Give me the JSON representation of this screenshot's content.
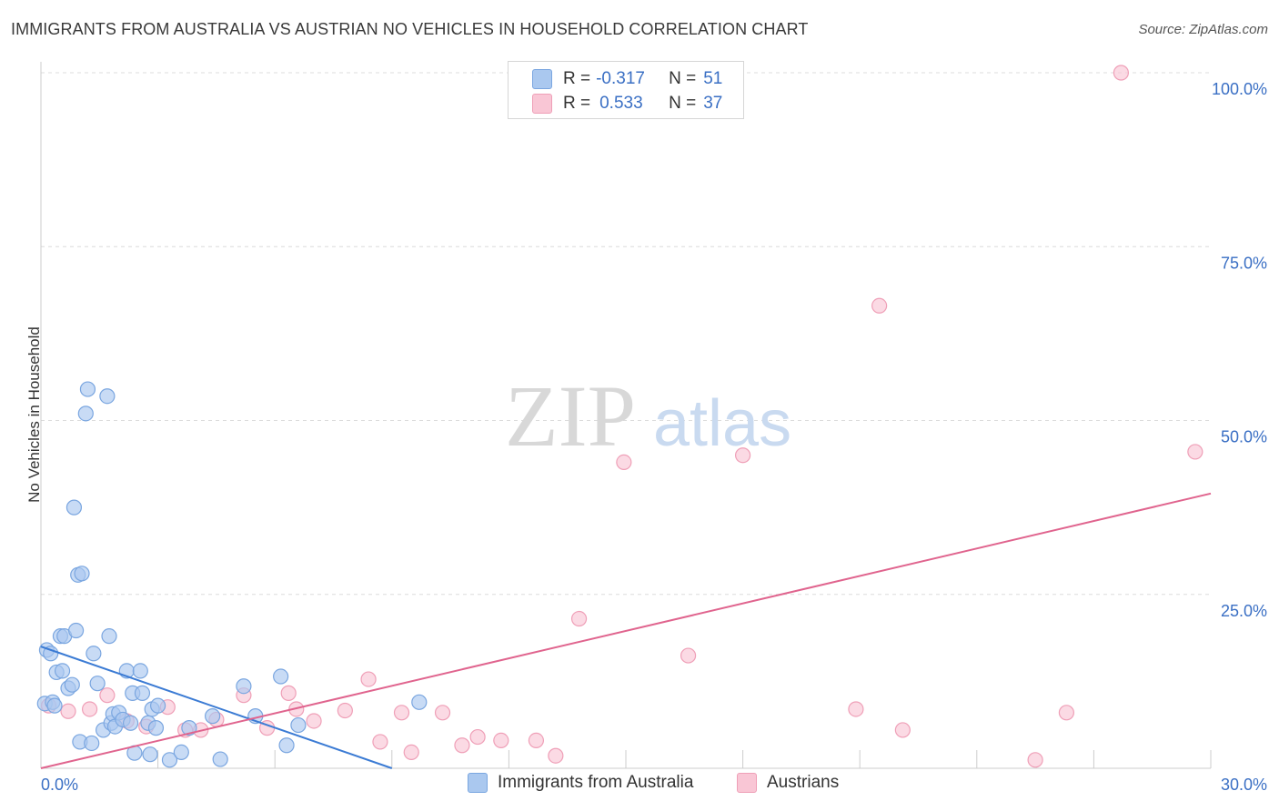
{
  "title": "IMMIGRANTS FROM AUSTRALIA VS AUSTRIAN NO VEHICLES IN HOUSEHOLD CORRELATION CHART",
  "source": "Source: ZipAtlas.com",
  "watermark": {
    "zip": "ZIP",
    "atlas": "atlas"
  },
  "legend": {
    "r_label": "R =",
    "n_label": "N =",
    "rows": [
      {
        "r": "-0.317",
        "n": "51",
        "color": "#aac8ef",
        "border": "#7aa6e0"
      },
      {
        "r": "0.533",
        "n": "37",
        "color": "#f9c6d5",
        "border": "#ef9fb7"
      }
    ]
  },
  "bottom_legend": {
    "series1": "Immigrants from Australia",
    "series2": "Austrians"
  },
  "colors": {
    "blue_fill": "#aac8ef",
    "blue_stroke": "#7aa6e0",
    "blue_line": "#3b7bd4",
    "pink_fill": "#f9c6d5",
    "pink_stroke": "#ef9fb7",
    "pink_line": "#e0648e",
    "axis_text": "#3a6fc4",
    "grid": "#dcdcdc"
  },
  "chart_data": {
    "type": "scatter",
    "title": "IMMIGRANTS FROM AUSTRALIA VS AUSTRIAN NO VEHICLES IN HOUSEHOLD CORRELATION CHART",
    "xlabel": "",
    "ylabel": "No Vehicles in Household",
    "xlim": [
      0,
      30
    ],
    "ylim": [
      0,
      100
    ],
    "x_tick_labels": {
      "left": "0.0%",
      "right": "30.0%"
    },
    "y_ticks": [
      {
        "value": 25,
        "label": "25.0%"
      },
      {
        "value": 50,
        "label": "50.0%"
      },
      {
        "value": 75,
        "label": "75.0%"
      },
      {
        "value": 100,
        "label": "100.0%"
      }
    ],
    "series": [
      {
        "name": "Immigrants from Australia",
        "points": [
          [
            0.1,
            9.3
          ],
          [
            0.15,
            17.0
          ],
          [
            0.25,
            16.5
          ],
          [
            0.3,
            9.5
          ],
          [
            0.35,
            9.0
          ],
          [
            0.4,
            13.8
          ],
          [
            0.5,
            19.0
          ],
          [
            0.55,
            14.0
          ],
          [
            0.6,
            19.0
          ],
          [
            0.7,
            11.5
          ],
          [
            0.8,
            12.0
          ],
          [
            0.85,
            37.5
          ],
          [
            0.9,
            19.8
          ],
          [
            0.95,
            27.8
          ],
          [
            1.05,
            28.0
          ],
          [
            1.0,
            3.8
          ],
          [
            1.15,
            51.0
          ],
          [
            1.2,
            54.5
          ],
          [
            1.3,
            3.6
          ],
          [
            1.35,
            16.5
          ],
          [
            1.45,
            12.2
          ],
          [
            1.6,
            5.5
          ],
          [
            1.7,
            53.5
          ],
          [
            1.75,
            19.0
          ],
          [
            1.8,
            6.5
          ],
          [
            1.85,
            7.8
          ],
          [
            1.9,
            6.0
          ],
          [
            2.0,
            8.0
          ],
          [
            2.1,
            7.0
          ],
          [
            2.2,
            14.0
          ],
          [
            2.3,
            6.5
          ],
          [
            2.35,
            10.8
          ],
          [
            2.4,
            2.2
          ],
          [
            2.55,
            14.0
          ],
          [
            2.6,
            10.8
          ],
          [
            2.75,
            6.5
          ],
          [
            2.8,
            2.0
          ],
          [
            2.85,
            8.5
          ],
          [
            2.95,
            5.8
          ],
          [
            3.0,
            9.0
          ],
          [
            3.3,
            1.2
          ],
          [
            3.6,
            2.3
          ],
          [
            3.8,
            5.8
          ],
          [
            4.4,
            7.5
          ],
          [
            4.6,
            1.3
          ],
          [
            5.2,
            11.8
          ],
          [
            5.5,
            7.5
          ],
          [
            6.15,
            13.2
          ],
          [
            6.3,
            3.3
          ],
          [
            6.6,
            6.2
          ],
          [
            9.7,
            9.5
          ]
        ]
      },
      {
        "name": "Austrians",
        "points": [
          [
            0.2,
            9.0
          ],
          [
            0.7,
            8.2
          ],
          [
            1.25,
            8.5
          ],
          [
            1.7,
            10.5
          ],
          [
            2.2,
            6.8
          ],
          [
            2.7,
            6.0
          ],
          [
            3.25,
            8.8
          ],
          [
            3.7,
            5.5
          ],
          [
            4.1,
            5.5
          ],
          [
            4.5,
            7.0
          ],
          [
            5.2,
            10.5
          ],
          [
            5.8,
            5.8
          ],
          [
            6.35,
            10.8
          ],
          [
            6.55,
            8.5
          ],
          [
            7.0,
            6.8
          ],
          [
            7.8,
            8.3
          ],
          [
            8.4,
            12.8
          ],
          [
            8.7,
            3.8
          ],
          [
            9.25,
            8.0
          ],
          [
            9.5,
            2.3
          ],
          [
            10.3,
            8.0
          ],
          [
            10.8,
            3.3
          ],
          [
            11.2,
            4.5
          ],
          [
            11.8,
            4.0
          ],
          [
            12.7,
            4.0
          ],
          [
            13.2,
            1.8
          ],
          [
            13.8,
            21.5
          ],
          [
            14.95,
            44.0
          ],
          [
            16.6,
            16.2
          ],
          [
            18.0,
            45.0
          ],
          [
            20.9,
            8.5
          ],
          [
            21.5,
            66.5
          ],
          [
            22.1,
            5.5
          ],
          [
            25.5,
            1.2
          ],
          [
            26.3,
            8.0
          ],
          [
            27.7,
            100.0
          ],
          [
            29.6,
            45.5
          ]
        ]
      }
    ],
    "trendlines": [
      {
        "series": "Immigrants from Australia",
        "from": [
          0,
          17.5
        ],
        "to": [
          9,
          0
        ]
      },
      {
        "series": "Austrians",
        "from": [
          0,
          0
        ],
        "to": [
          30,
          39.5
        ]
      }
    ]
  }
}
